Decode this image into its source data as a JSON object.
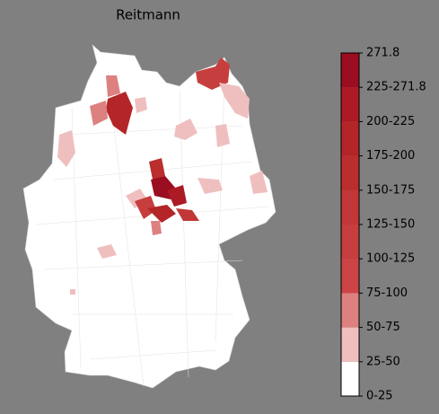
{
  "title": "Reitmann",
  "colorbar": {
    "ticks": [
      "0-25",
      "25-50",
      "50-75",
      "75-100",
      "100-125",
      "125-150",
      "150-175",
      "175-200",
      "200-225",
      "225-271.8",
      "271.8"
    ],
    "colors": [
      "#ffffff",
      "#efbfbf",
      "#dd8080",
      "#cc4444",
      "#c73e3e",
      "#c13636",
      "#bb2e2e",
      "#b42528",
      "#ab1a25",
      "#9b0d20"
    ]
  }
}
